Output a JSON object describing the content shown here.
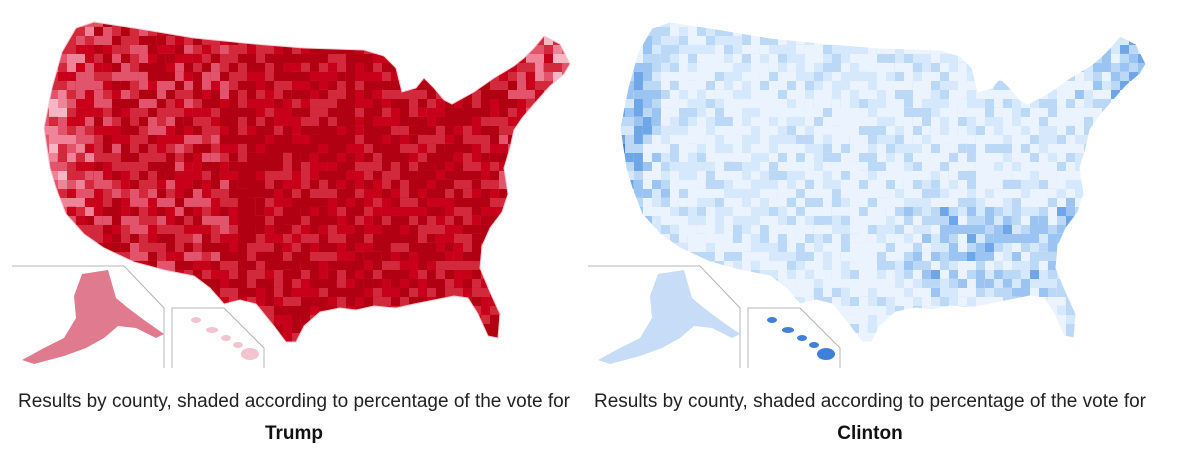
{
  "panels": [
    {
      "id": "trump",
      "caption_text": "Results by county, shaded according to percentage of the vote for ",
      "caption_bold": "Trump",
      "palette": [
        "#fde0e6",
        "#f7b6c4",
        "#ef8499",
        "#e2546c",
        "#d22a3c",
        "#c8001a",
        "#b00012"
      ],
      "base_fill": "#cc1a2a",
      "inset_fill": "#e07a8e",
      "hawaii_fill": "#f2c4cf"
    },
    {
      "id": "clinton",
      "caption_text": "Results by county, shaded according to percentage of the vote for ",
      "caption_bold": "Clinton",
      "palette": [
        "#eaf3ff",
        "#d6e8fc",
        "#bcd8f7",
        "#9cc4f2",
        "#6fa6e8",
        "#3f80d9",
        "#1758c0"
      ],
      "base_fill": "#d2e5fb",
      "inset_fill": "#c6dcf7",
      "hawaii_fill": "#3f80d9"
    }
  ]
}
